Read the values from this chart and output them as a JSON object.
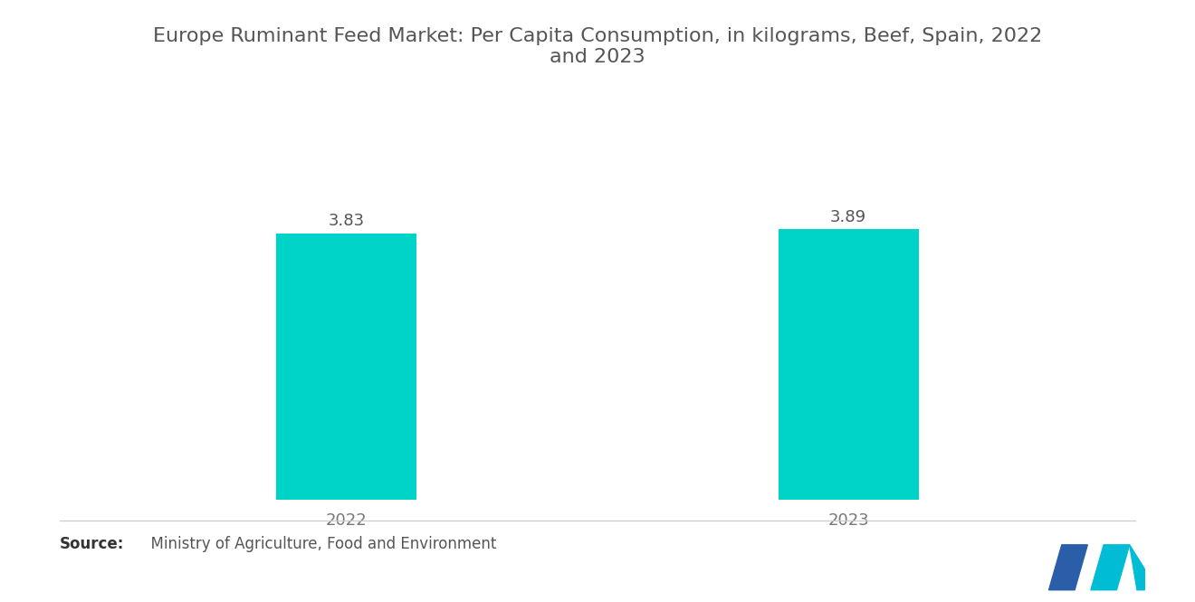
{
  "title": "Europe Ruminant Feed Market: Per Capita Consumption, in kilograms, Beef, Spain, 2022\nand 2023",
  "categories": [
    "2022",
    "2023"
  ],
  "values": [
    3.83,
    3.89
  ],
  "bar_color": "#00D4C8",
  "bar_width": 0.28,
  "x_positions": [
    1,
    2
  ],
  "value_labels": [
    "3.83",
    "3.89"
  ],
  "source_bold": "Source:",
  "source_text": "  Ministry of Agriculture, Food and Environment",
  "background_color": "#ffffff",
  "title_fontsize": 16,
  "label_fontsize": 13,
  "value_fontsize": 13,
  "source_fontsize": 12,
  "ylim": [
    0,
    5.2
  ],
  "xlim": [
    0.5,
    2.5
  ],
  "title_color": "#555555",
  "tick_color": "#777777",
  "value_label_color": "#555555"
}
